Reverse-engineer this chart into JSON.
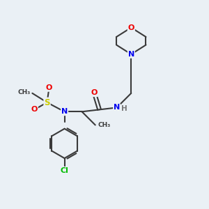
{
  "background_color": "#eaf0f5",
  "atom_colors": {
    "C": "#3a3a3a",
    "N": "#0000ee",
    "O": "#ee0000",
    "S": "#cccc00",
    "Cl": "#00bb00",
    "H": "#777777"
  },
  "bond_color": "#3a3a3a",
  "figsize": [
    3.0,
    3.0
  ],
  "dpi": 100
}
